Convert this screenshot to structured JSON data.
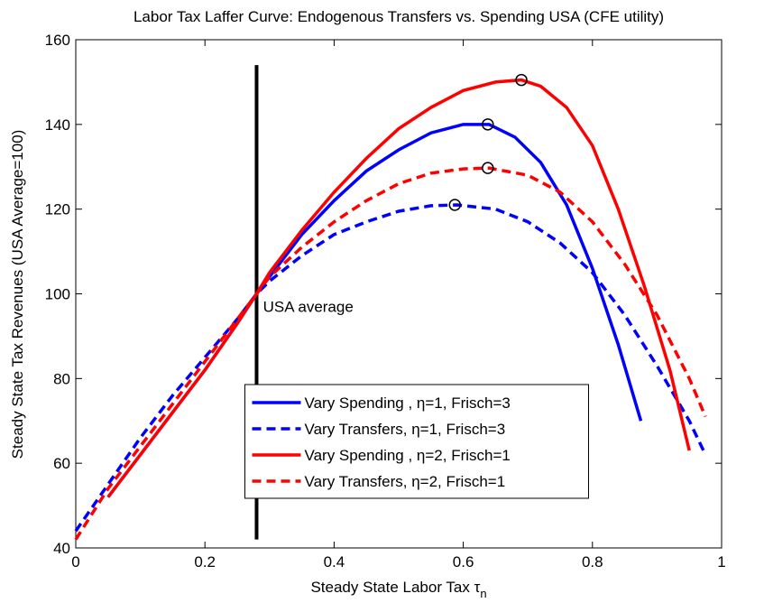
{
  "chart_data": {
    "type": "line",
    "title": "Labor Tax Laffer Curve: Endogenous Transfers vs. Spending USA   (CFE utility)",
    "xlabel": "Steady State Labor Tax τ",
    "xlabel_subscript": "n",
    "ylabel": "Steady State Tax Revenues (USA   Average=100)",
    "xlim": [
      0,
      1
    ],
    "xticks": [
      0,
      0.2,
      0.4,
      0.6,
      0.8,
      1
    ],
    "ylim": [
      40,
      160
    ],
    "yticks": [
      40,
      60,
      80,
      100,
      120,
      140,
      160
    ],
    "legend_loc": "lower center",
    "series": [
      {
        "name": "Vary Spending , η=1, Frisch=3",
        "color": "#0000ff",
        "dashed": false,
        "x": [
          0.05,
          0.1,
          0.15,
          0.2,
          0.25,
          0.28,
          0.3,
          0.35,
          0.4,
          0.45,
          0.5,
          0.55,
          0.6,
          0.64,
          0.68,
          0.72,
          0.76,
          0.8,
          0.84,
          0.875
        ],
        "values": [
          52,
          62,
          72,
          82,
          93,
          100,
          104,
          114,
          122,
          129,
          134,
          138,
          140,
          140,
          137,
          131,
          121,
          106,
          88,
          70
        ]
      },
      {
        "name": "Vary Transfers, η=1, Frisch=3",
        "color": "#0000ff",
        "dashed": true,
        "x": [
          0,
          0.05,
          0.1,
          0.15,
          0.2,
          0.25,
          0.28,
          0.3,
          0.35,
          0.4,
          0.45,
          0.5,
          0.55,
          0.59,
          0.65,
          0.7,
          0.75,
          0.8,
          0.85,
          0.9,
          0.95,
          0.975
        ],
        "values": [
          44,
          55,
          66,
          76,
          85,
          94,
          100,
          103,
          109,
          114,
          117,
          119.5,
          120.8,
          121,
          120,
          117,
          112,
          105,
          95,
          83,
          70,
          62
        ]
      },
      {
        "name": "Vary Spending , η=2, Frisch=1",
        "color": "#ff0000",
        "dashed": false,
        "x": [
          0.05,
          0.1,
          0.15,
          0.2,
          0.25,
          0.28,
          0.3,
          0.35,
          0.4,
          0.45,
          0.5,
          0.55,
          0.6,
          0.65,
          0.69,
          0.72,
          0.76,
          0.8,
          0.84,
          0.88,
          0.92,
          0.95
        ],
        "values": [
          52,
          62,
          72,
          82,
          93,
          100,
          105,
          115,
          124,
          132,
          139,
          144,
          148,
          150,
          150.5,
          149,
          144,
          135,
          120,
          102,
          82,
          63
        ]
      },
      {
        "name": "Vary Transfers, η=2, Frisch=1",
        "color": "#ff0000",
        "dashed": true,
        "x": [
          0,
          0.05,
          0.1,
          0.15,
          0.2,
          0.25,
          0.28,
          0.3,
          0.35,
          0.4,
          0.45,
          0.5,
          0.55,
          0.6,
          0.64,
          0.7,
          0.75,
          0.8,
          0.85,
          0.9,
          0.95,
          0.975
        ],
        "values": [
          42,
          54,
          64,
          74,
          84,
          94,
          100,
          104,
          111,
          117,
          122,
          126,
          128.5,
          129.5,
          129.7,
          128,
          124,
          117,
          107,
          95,
          80,
          71
        ]
      }
    ],
    "peaks": {
      "x": [
        0.69,
        0.638,
        0.638,
        0.587
      ],
      "y": [
        150.5,
        140,
        129.7,
        121
      ]
    },
    "vline": {
      "x": 0.28,
      "y": [
        42,
        154
      ]
    },
    "annotation": {
      "text": "USA   average",
      "x": 0.29,
      "y": 97
    }
  }
}
